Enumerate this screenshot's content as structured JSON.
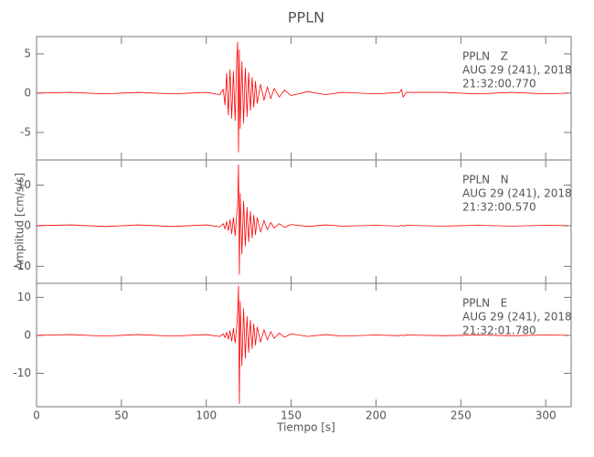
{
  "chart_data": [
    {
      "type": "line",
      "title": "PPLN",
      "annotations": [
        "PPLN   Z",
        "AUG 29 (241), 2018",
        "21:32:00.770"
      ],
      "xlim": [
        0,
        315
      ],
      "ylim": [
        -8.5,
        7.2
      ],
      "yticks": [
        -5,
        0,
        5
      ],
      "x": [
        0,
        20,
        40,
        60,
        80,
        100,
        108,
        110,
        111,
        112,
        113,
        114,
        115,
        116,
        117,
        118,
        118.5,
        119,
        119.5,
        120,
        121,
        122,
        123,
        124,
        125,
        126,
        127,
        128,
        129,
        130,
        132,
        134,
        136,
        138,
        140,
        143,
        146,
        150,
        160,
        170,
        180,
        200,
        214,
        215,
        216,
        218,
        240,
        260,
        280,
        300,
        313
      ],
      "series": [
        {
          "color": "#ff0000",
          "values": [
            0,
            0.1,
            -0.1,
            0.1,
            -0.1,
            0.1,
            -0.2,
            0.5,
            -1.5,
            2.5,
            -2.8,
            3.0,
            -3.2,
            2.8,
            -3.5,
            4.5,
            6.5,
            -7.5,
            5.5,
            -4.5,
            4,
            -3.8,
            3.2,
            -3,
            2.6,
            -2.2,
            2,
            -1.8,
            1.5,
            -1.3,
            1.1,
            -0.9,
            0.8,
            -0.7,
            0.6,
            -0.5,
            0.4,
            -0.3,
            0.2,
            -0.2,
            0.1,
            -0.1,
            0.1,
            0.5,
            -0.5,
            0.1,
            0.1,
            -0.1,
            0.1,
            -0.1,
            0
          ]
        }
      ]
    },
    {
      "type": "line",
      "ylabel": "Amplitud [cm/s/s]",
      "annotations": [
        "PPLN   N",
        "AUG 29 (241), 2018",
        "21:32:00.570"
      ],
      "xlim": [
        0,
        315
      ],
      "ylim": [
        -14.2,
        16.2
      ],
      "yticks": [
        -10,
        0,
        10
      ],
      "x": [
        0,
        20,
        40,
        60,
        80,
        100,
        108,
        110,
        111,
        112,
        113,
        114,
        115,
        116,
        117,
        118,
        118.5,
        119,
        119.5,
        120,
        121,
        122,
        123,
        124,
        125,
        126,
        127,
        128,
        129,
        130,
        132,
        134,
        136,
        138,
        140,
        143,
        146,
        150,
        160,
        170,
        180,
        200,
        214,
        215,
        216,
        218,
        240,
        260,
        280,
        300,
        313
      ],
      "series": [
        {
          "color": "#ff0000",
          "values": [
            0,
            0.2,
            -0.2,
            0.2,
            -0.2,
            0.2,
            -0.3,
            0.5,
            -0.8,
            1,
            -1.2,
            1.5,
            -2,
            2,
            -2.5,
            3,
            5,
            15,
            -12,
            8,
            -7,
            6,
            -5,
            4.5,
            -4,
            3.5,
            -3,
            2.6,
            -2.2,
            2,
            -1.6,
            1.3,
            -1,
            0.8,
            -0.6,
            0.5,
            -0.4,
            0.3,
            -0.2,
            0.2,
            -0.1,
            0.1,
            -0.1,
            0.1,
            -0.1,
            0.1,
            -0.1,
            0.1,
            -0.1,
            0.1,
            0
          ]
        }
      ]
    },
    {
      "type": "line",
      "xlabel": "Tiempo [s]",
      "annotations": [
        "PPLN   E",
        "AUG 29 (241), 2018",
        "21:32:01.780"
      ],
      "xlim": [
        0,
        315
      ],
      "ylim": [
        -18.8,
        13.7
      ],
      "yticks": [
        -10,
        0,
        10
      ],
      "xticks": [
        0,
        50,
        100,
        150,
        200,
        250,
        300
      ],
      "x": [
        0,
        20,
        40,
        60,
        80,
        100,
        108,
        110,
        111,
        112,
        113,
        114,
        115,
        116,
        117,
        118,
        118.5,
        119,
        119.5,
        120,
        121,
        122,
        123,
        124,
        125,
        126,
        127,
        128,
        129,
        130,
        132,
        134,
        136,
        138,
        140,
        143,
        146,
        150,
        160,
        170,
        180,
        200,
        214,
        215,
        216,
        218,
        240,
        260,
        280,
        300,
        313
      ],
      "series": [
        {
          "color": "#ff0000",
          "values": [
            0,
            0.2,
            -0.2,
            0.2,
            -0.2,
            0.2,
            -0.3,
            0.4,
            -0.6,
            0.8,
            -1,
            1.2,
            -1.5,
            1.8,
            -2,
            2.5,
            6,
            13,
            -18,
            9,
            -8,
            7,
            -6,
            5,
            -4.5,
            4,
            -3.5,
            3,
            -2.6,
            2.2,
            -1.8,
            1.5,
            -1.2,
            1,
            -0.8,
            0.6,
            -0.5,
            0.4,
            -0.3,
            0.2,
            -0.2,
            0.1,
            -0.1,
            0.1,
            -0.1,
            0.1,
            -0.1,
            0.1,
            -0.1,
            0.1,
            0
          ]
        }
      ]
    }
  ]
}
